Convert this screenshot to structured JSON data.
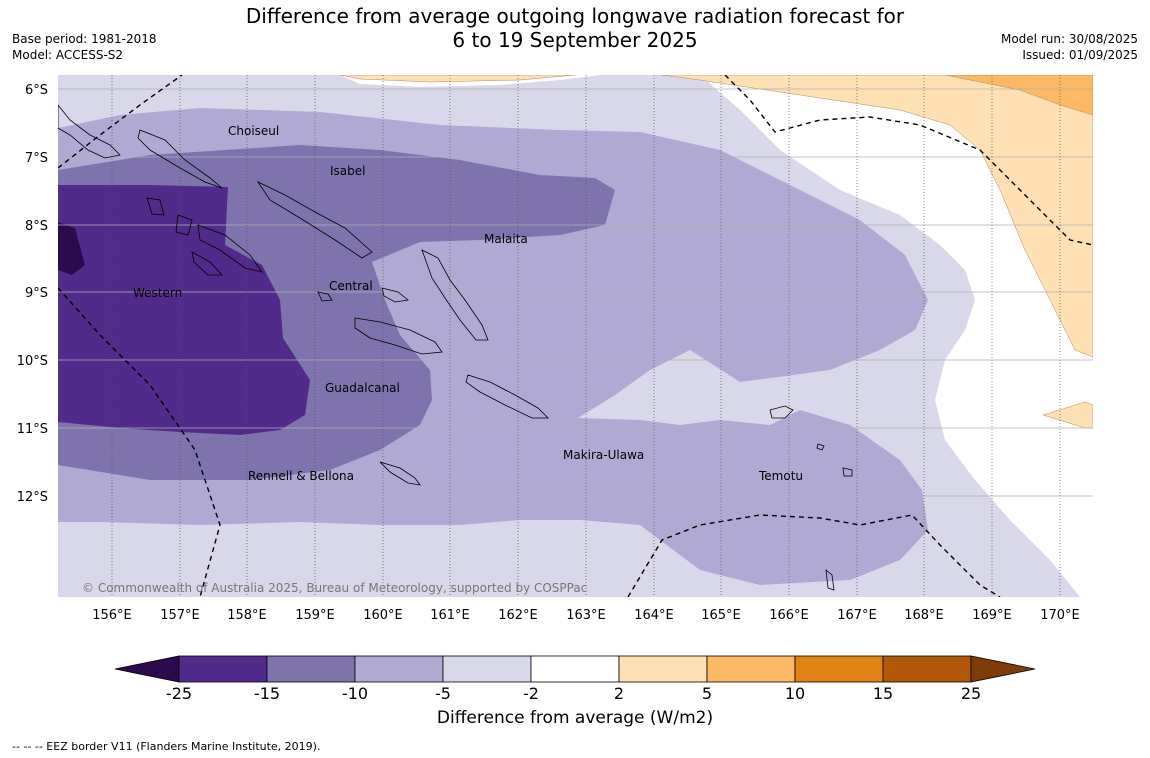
{
  "title": {
    "line1": "Difference from average outgoing longwave radiation forecast for",
    "line2": "6 to 19 September 2025"
  },
  "meta_left": {
    "base_period": "Base period: 1981-2018",
    "model": "Model: ACCESS-S2"
  },
  "meta_right": {
    "model_run": "Model run: 30/08/2025",
    "issued": "Issued: 01/09/2025"
  },
  "map": {
    "lat_labels": [
      "6°S",
      "7°S",
      "8°S",
      "9°S",
      "10°S",
      "11°S",
      "12°S"
    ],
    "lon_labels": [
      "156°E",
      "157°E",
      "158°E",
      "159°E",
      "160°E",
      "161°E",
      "162°E",
      "163°E",
      "164°E",
      "165°E",
      "166°E",
      "167°E",
      "168°E",
      "169°E",
      "170°E"
    ],
    "places": [
      "Choiseul",
      "Isabel",
      "Malaita",
      "Western",
      "Central",
      "Guadalcanal",
      "Makira-Ulawa",
      "Rennell & Bellona",
      "Temotu"
    ],
    "copyright": "© Commonwealth of Australia 2025, Bureau of Meteorology, supported by COSPPac"
  },
  "legend": {
    "ticks": [
      "-25",
      "-15",
      "-10",
      "-5",
      "-2",
      "2",
      "5",
      "10",
      "15",
      "25"
    ],
    "colors": [
      "#2d0a4e",
      "#522a8c",
      "#7f73ad",
      "#b0aad3",
      "#d8d8ea",
      "#ffffff",
      "#ffe0b5",
      "#fdb864",
      "#e08214",
      "#b35806",
      "#7f3b08"
    ],
    "label": "Difference from average (W/m2)"
  },
  "footnote": "--  --  -- EEZ border V11 (Flanders Marine Institute, 2019)."
}
